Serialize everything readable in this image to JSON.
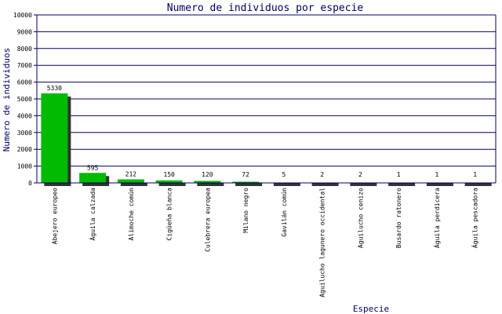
{
  "chart_data": {
    "type": "bar",
    "title": "Numero de individuos por especie",
    "xlabel": "Especie",
    "ylabel": "Numero de individuos",
    "ylim": [
      0,
      10000
    ],
    "yticks": [
      0,
      1000,
      2000,
      3000,
      4000,
      5000,
      6000,
      7000,
      8000,
      9000,
      10000
    ],
    "grid": true,
    "legend": "none",
    "categories": [
      "Abejero europeo",
      "Águila calzada",
      "Alimoche común",
      "Cigüeña blanca",
      "Culebrera europea",
      "Milano negro",
      "Gavilán común",
      "Aguilucho lagunero occidental",
      "Aguilucho cenizo",
      "Busardo ratonero",
      "Águila perdicera",
      "Águila pescadora"
    ],
    "values": [
      5330,
      595,
      212,
      150,
      120,
      72,
      5,
      2,
      2,
      1,
      1,
      1
    ],
    "data_labels": [
      "5330",
      "595",
      "212",
      "150",
      "120",
      "72",
      "5",
      "2",
      "2",
      "1",
      "1",
      "1"
    ],
    "colors": {
      "bar": "#00bb00",
      "shadow": "#333333",
      "axis": "#000066",
      "grid": "#000066",
      "text": "#000000",
      "title": "#000066"
    }
  }
}
